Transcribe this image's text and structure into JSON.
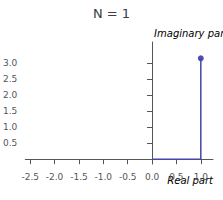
{
  "chart_data": {
    "type": "line",
    "title": "N = 1",
    "xlabel": "Real part",
    "ylabel": "Imaginary part",
    "xlim": [
      -2.6,
      1.25
    ],
    "ylim": [
      -0.15,
      3.65
    ],
    "xticks": [
      -2.5,
      {
        "value": -2.0,
        "label": "-2.0"
      },
      -1.5,
      {
        "value": -1.0,
        "label": "-1.0"
      },
      -0.5,
      {
        "value": 0.0,
        "label": "0.0"
      },
      0.5,
      {
        "value": 1.0,
        "label": "1.0"
      }
    ],
    "yticks": [
      0.5,
      {
        "value": 1.0,
        "label": "1.0"
      },
      1.5,
      {
        "value": 2.0,
        "label": "2.0"
      },
      2.5,
      {
        "value": 3.0,
        "label": "3.0"
      }
    ],
    "grid": false,
    "series": [
      {
        "type": "line",
        "color": "#4444aa",
        "x": [
          0,
          1,
          1
        ],
        "values": [
          0,
          0,
          3.14159265358979
        ]
      },
      {
        "type": "scatter",
        "color": "#2222aa",
        "marker": "circle",
        "x": [
          1.0
        ],
        "values": [
          3.14159265358979
        ]
      }
    ]
  }
}
